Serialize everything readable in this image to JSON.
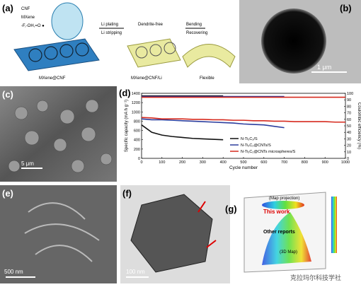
{
  "panels": {
    "a": {
      "label": "(a)",
      "cnf": "CNF",
      "mxene": "MXene",
      "groups": "-F,-OH,=O ●",
      "plating": "Li plating",
      "stripping": "Li stripping",
      "dendrite": "Dendrite-free",
      "bending": "Bending",
      "recovering": "Recovering",
      "flexible": "Flexible",
      "name1": "MXene@CNF",
      "name2": "MXene@CNF/Li"
    },
    "b": {
      "label": "(b)",
      "scale": "1 μm"
    },
    "c": {
      "label": "(c)",
      "scale": "5 μm"
    },
    "d": {
      "label": "(d)"
    },
    "e": {
      "label": "(e)",
      "scale": "500 nm"
    },
    "f": {
      "label": "(f)",
      "scale": "100 nm"
    },
    "g": {
      "label": "(g)",
      "map": "(Map projection)",
      "this": "This work",
      "other": "Other reports",
      "map3d": "(3D Map)"
    }
  },
  "watermark": "克拉玛尔科技学社",
  "chart_data": {
    "type": "line",
    "y_label": "Specific capacity (mA h g⁻¹)",
    "x_label": "Cycle number",
    "y2_label": "Coulombic efficiency (%)",
    "x": [
      0,
      50,
      100,
      150,
      200,
      250,
      300,
      350,
      400,
      450,
      500,
      550,
      600,
      650,
      700,
      750,
      800,
      850,
      900,
      950,
      1000
    ],
    "xlim": [
      0,
      1000
    ],
    "xticks": [
      0,
      100,
      200,
      300,
      400,
      500,
      600,
      700,
      800,
      900,
      1000
    ],
    "ylim": [
      0,
      1400
    ],
    "yticks": [
      0,
      200,
      400,
      600,
      800,
      1000,
      1200,
      1400
    ],
    "y2lim": [
      0,
      100
    ],
    "y2ticks": [
      0,
      10,
      20,
      30,
      40,
      50,
      60,
      70,
      80,
      90,
      100
    ],
    "series": [
      {
        "name": "N-Ti₃C₂/S",
        "color": "#111111",
        "values": [
          720,
          560,
          500,
          470,
          450,
          430,
          420,
          410,
          400,
          null,
          null,
          null,
          null,
          null,
          null,
          null,
          null,
          null,
          null,
          null,
          null
        ]
      },
      {
        "name": "N-Ti₃C₂@CNTs/S",
        "color": "#2c3e9e",
        "values": [
          850,
          830,
          830,
          820,
          810,
          800,
          790,
          780,
          770,
          760,
          740,
          730,
          720,
          690,
          660,
          null,
          null,
          null,
          null,
          null,
          null
        ]
      },
      {
        "name": "N-Ti₃C₂@CNTs microspheres/S",
        "color": "#d62a1e",
        "values": [
          880,
          870,
          850,
          850,
          850,
          840,
          840,
          830,
          830,
          820,
          820,
          810,
          810,
          800,
          800,
          790,
          790,
          790,
          790,
          780,
          780
        ]
      },
      {
        "color": "#111111",
        "axis": "y2",
        "values": [
          96,
          96,
          96,
          96,
          96,
          96,
          96,
          96,
          96,
          null,
          null,
          null,
          null,
          null,
          null,
          null,
          null,
          null,
          null,
          null,
          null
        ]
      },
      {
        "color": "#2c3e9e",
        "axis": "y2",
        "values": [
          95,
          95,
          95,
          95,
          95,
          95,
          95,
          95,
          95,
          95,
          95,
          95,
          95,
          95,
          95,
          null,
          null,
          null,
          null,
          null,
          null
        ]
      },
      {
        "color": "#d62a1e",
        "axis": "y2",
        "values": [
          94,
          94,
          94,
          94,
          94,
          94,
          94,
          94,
          94,
          94,
          94,
          94,
          94,
          94,
          94,
          94,
          94,
          94,
          94,
          94,
          94
        ]
      }
    ]
  }
}
